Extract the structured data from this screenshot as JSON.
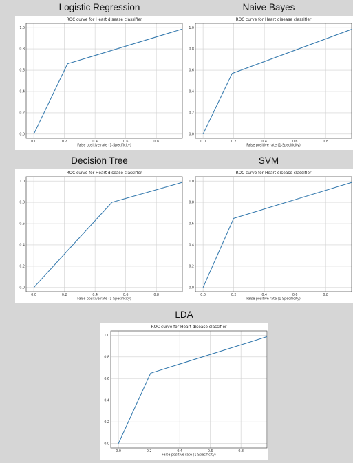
{
  "chart_data": [
    {
      "type": "line",
      "panel_title": "Logistic Regression",
      "title": "ROC curve for Heart disease classifier",
      "xlabel": "False positive rate (1-Specificity)",
      "ylabel": "",
      "xlim": [
        -0.05,
        0.97
      ],
      "ylim": [
        -0.04,
        1.04
      ],
      "x_ticks": [
        "0.0",
        "0.2",
        "0.4",
        "0.6",
        "0.8"
      ],
      "y_ticks": [
        "0.0",
        "0.2",
        "0.4",
        "0.6",
        "0.8",
        "1.0"
      ],
      "grid": true,
      "x": [
        0.0,
        0.22,
        1.0
      ],
      "y": [
        0.0,
        0.66,
        1.0
      ]
    },
    {
      "type": "line",
      "panel_title": "Naive Bayes",
      "title": "ROC curve for Heart disease classifier",
      "xlabel": "False positive rate (1-Specificity)",
      "ylabel": "",
      "xlim": [
        -0.05,
        0.97
      ],
      "ylim": [
        -0.04,
        1.04
      ],
      "x_ticks": [
        "0.0",
        "0.2",
        "0.4",
        "0.6",
        "0.8"
      ],
      "y_ticks": [
        "0.0",
        "0.2",
        "0.4",
        "0.6",
        "0.8",
        "1.0"
      ],
      "grid": true,
      "x": [
        0.0,
        0.19,
        1.0
      ],
      "y": [
        0.0,
        0.57,
        1.0
      ]
    },
    {
      "type": "line",
      "panel_title": "Decision Tree",
      "title": "ROC curve for Heart disease classifier",
      "xlabel": "False positive rate (1-Specificity)",
      "ylabel": "",
      "xlim": [
        -0.05,
        0.97
      ],
      "ylim": [
        -0.04,
        1.04
      ],
      "x_ticks": [
        "0.0",
        "0.2",
        "0.4",
        "0.6",
        "0.8"
      ],
      "y_ticks": [
        "0.0",
        "0.2",
        "0.4",
        "0.6",
        "0.8",
        "1.0"
      ],
      "grid": true,
      "x": [
        0.0,
        0.51,
        1.0
      ],
      "y": [
        0.0,
        0.8,
        1.0
      ]
    },
    {
      "type": "line",
      "panel_title": "SVM",
      "title": "ROC curve for Heart disease classifier",
      "xlabel": "False positive rate (1-Specificity)",
      "ylabel": "",
      "xlim": [
        -0.05,
        0.97
      ],
      "ylim": [
        -0.04,
        1.04
      ],
      "x_ticks": [
        "0.0",
        "0.2",
        "0.4",
        "0.6",
        "0.8"
      ],
      "y_ticks": [
        "0.0",
        "0.2",
        "0.4",
        "0.6",
        "0.8",
        "1.0"
      ],
      "grid": true,
      "x": [
        0.0,
        0.2,
        1.0
      ],
      "y": [
        0.0,
        0.65,
        1.0
      ]
    },
    {
      "type": "line",
      "panel_title": "LDA",
      "title": "ROC curve for Heart disease classifier",
      "xlabel": "False positive rate (1-Specificity)",
      "ylabel": "",
      "xlim": [
        -0.05,
        0.97
      ],
      "ylim": [
        -0.04,
        1.04
      ],
      "x_ticks": [
        "0.0",
        "0.2",
        "0.4",
        "0.6",
        "0.8"
      ],
      "y_ticks": [
        "0.0",
        "0.2",
        "0.4",
        "0.6",
        "0.8",
        "1.0"
      ],
      "grid": true,
      "x": [
        0.0,
        0.21,
        1.0
      ],
      "y": [
        0.0,
        0.65,
        1.0
      ]
    }
  ],
  "colors": {
    "line": "#3a7db0",
    "grid": "#cfcfcf",
    "frame": "#444444",
    "background": "#d6d6d6"
  }
}
